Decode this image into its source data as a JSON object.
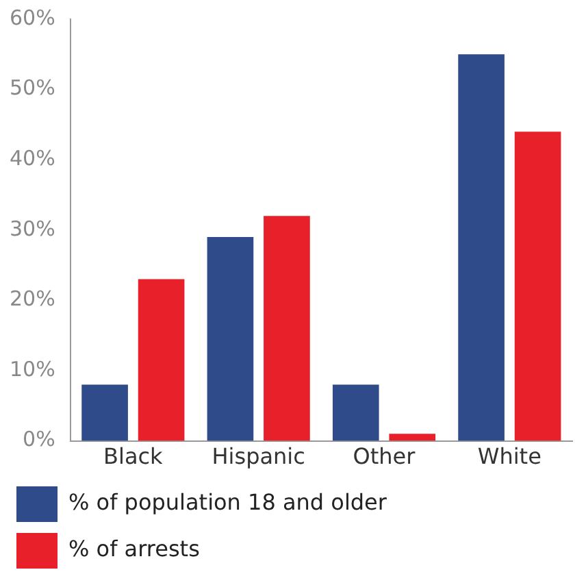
{
  "chart_data": {
    "type": "bar",
    "categories": [
      "Black",
      "Hispanic",
      "Other",
      "White"
    ],
    "series": [
      {
        "name": "% of population 18 and older",
        "color": "#2f4b8a",
        "values": [
          8,
          29,
          8,
          55
        ]
      },
      {
        "name": "% of arrests",
        "color": "#e8202a",
        "values": [
          23,
          32,
          1,
          44
        ]
      }
    ],
    "ylim": [
      0,
      60
    ],
    "yticks": [
      {
        "value": 0,
        "label": "0%"
      },
      {
        "value": 10,
        "label": "10%"
      },
      {
        "value": 20,
        "label": "20%"
      },
      {
        "value": 30,
        "label": "30%"
      },
      {
        "value": 40,
        "label": "40%"
      },
      {
        "value": 50,
        "label": "50%"
      },
      {
        "value": 60,
        "label": "60%"
      }
    ],
    "grid": false,
    "legend": "bottom"
  }
}
